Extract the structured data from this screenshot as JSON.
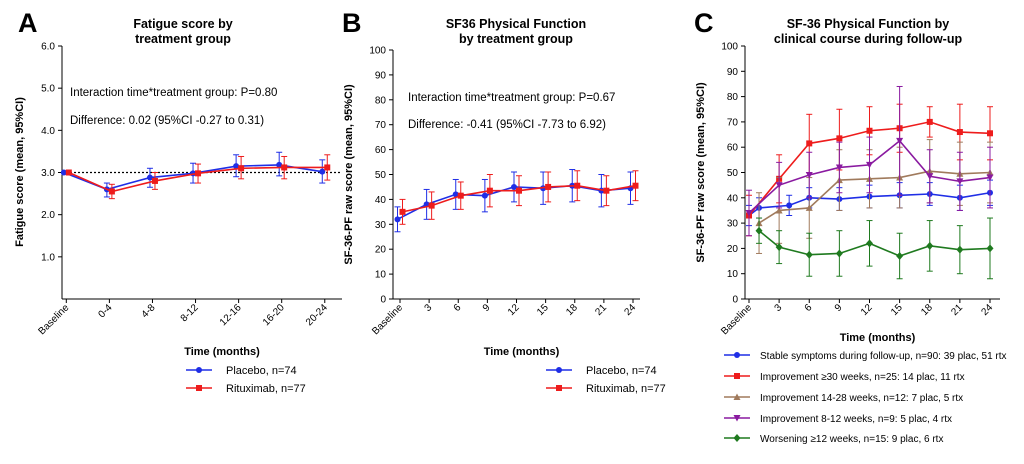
{
  "colors": {
    "blue": "#1f2ee6",
    "red": "#ee1c1c",
    "brown": "#a07a5c",
    "purple": "#8a1aa0",
    "green": "#1f7a1f"
  },
  "chart_data": [
    {
      "panel": "A",
      "type": "line",
      "title_lines": [
        "Fatigue score by",
        "treatment group"
      ],
      "xlabel": "Time (months)",
      "ylabel": "Fatigue score (mean, 95%CI)",
      "categories": [
        "Baseline",
        "0-4",
        "4-8",
        "8-12",
        "12-16",
        "16-20",
        "20-24"
      ],
      "ylim": [
        0,
        6
      ],
      "yticks": [
        "1.0",
        "2.0",
        "3.0",
        "4.0",
        "5.0",
        "6.0"
      ],
      "reference_line": 3.0,
      "annotations": [
        "Interaction time*treatment group: P=0.80",
        "Difference: 0.02 (95%CI -0.27 to 0.31)"
      ],
      "series": [
        {
          "name": "Placebo, n=74",
          "color": "blue",
          "marker": "circle",
          "values": [
            3.0,
            2.6,
            2.88,
            2.98,
            3.15,
            3.18,
            3.02
          ],
          "lower": [
            3.0,
            2.42,
            2.65,
            2.75,
            2.9,
            2.92,
            2.75
          ],
          "upper": [
            3.0,
            2.75,
            3.1,
            3.22,
            3.42,
            3.48,
            3.3
          ]
        },
        {
          "name": "Rituximab, n=77",
          "color": "red",
          "marker": "square",
          "values": [
            3.0,
            2.55,
            2.8,
            2.98,
            3.1,
            3.12,
            3.12
          ],
          "lower": [
            3.0,
            2.38,
            2.6,
            2.75,
            2.85,
            2.85,
            2.82
          ],
          "upper": [
            3.0,
            2.72,
            3.0,
            3.2,
            3.38,
            3.38,
            3.42
          ]
        }
      ]
    },
    {
      "panel": "B",
      "type": "line",
      "title_lines": [
        "SF36 Physical Function",
        "by treatment group"
      ],
      "xlabel": "Time (months)",
      "ylabel": "SF-36-PF raw score (mean, 95%CI)",
      "x": [
        0,
        3,
        6,
        9,
        12,
        15,
        18,
        21,
        24
      ],
      "xticklabels": [
        "Baseline",
        "3",
        "6",
        "9",
        "12",
        "15",
        "18",
        "21",
        "24"
      ],
      "ylim": [
        0,
        100
      ],
      "yticks": [
        0,
        10,
        20,
        30,
        40,
        50,
        60,
        70,
        80,
        90,
        100
      ],
      "annotations": [
        "Interaction time*treatment group: P=0.67",
        "Difference: -0.41 (95%CI -7.73 to 6.92)"
      ],
      "series": [
        {
          "name": "Placebo, n=74",
          "color": "blue",
          "marker": "circle",
          "values": [
            32,
            38,
            42,
            41.5,
            45,
            44.5,
            45.5,
            43.5,
            44.5
          ],
          "lower": [
            27,
            32,
            36,
            35,
            39,
            38,
            39,
            37,
            38
          ],
          "upper": [
            37,
            44,
            48,
            48,
            51,
            51,
            52,
            50,
            51
          ]
        },
        {
          "name": "Rituximab, n=77",
          "color": "red",
          "marker": "square",
          "values": [
            35,
            37.5,
            41.5,
            43.5,
            43.5,
            45,
            45.5,
            43.5,
            45.5
          ],
          "lower": [
            30,
            32,
            36,
            37,
            37.5,
            39,
            39.5,
            37.5,
            39.5
          ],
          "upper": [
            40,
            43,
            47,
            50,
            49.5,
            51,
            51.5,
            49.5,
            51.5
          ]
        }
      ]
    },
    {
      "panel": "C",
      "type": "line",
      "title_lines": [
        "SF-36 Physical Function by",
        "clinical course during follow-up"
      ],
      "xlabel": "Time (months)",
      "ylabel": "SF-36-PF raw score (mean, 95%CI)",
      "xticklabels": [
        "Baseline",
        "3",
        "6",
        "9",
        "12",
        "15",
        "18",
        "21",
        "24"
      ],
      "ylim": [
        0,
        100
      ],
      "yticks": [
        0,
        10,
        20,
        30,
        40,
        50,
        60,
        70,
        80,
        90,
        100
      ],
      "series": [
        {
          "name": "Stable symptoms during follow-up, n=90: 39 plac, 51 rtx",
          "color": "blue",
          "marker": "circle",
          "x": [
            0,
            1,
            4,
            6,
            9,
            12,
            15,
            18,
            21,
            24
          ],
          "values": [
            33,
            36,
            37,
            40,
            39.5,
            40.5,
            41,
            41.5,
            40,
            42
          ],
          "lower": [
            29,
            32,
            33,
            36,
            35,
            36,
            36,
            37,
            35,
            37
          ],
          "upper": [
            37,
            40,
            41,
            44,
            44,
            45,
            46,
            46,
            45,
            47
          ]
        },
        {
          "name": "Improvement ≥30 weeks, n=25: 14 plac, 11 rtx",
          "color": "red",
          "marker": "square",
          "x": [
            0,
            3,
            6,
            9,
            12,
            15,
            18,
            21,
            24
          ],
          "values": [
            33,
            47.5,
            61.5,
            63.5,
            66.5,
            67.5,
            70,
            66,
            65.5
          ],
          "lower": [
            25,
            38,
            50,
            51,
            57,
            58,
            64,
            55,
            55
          ],
          "upper": [
            41,
            57,
            73,
            75,
            76,
            77,
            76,
            77,
            76
          ]
        },
        {
          "name": "Improvement 14-28 weeks, n=12: 7 plac, 5 rtx",
          "color": "brown",
          "marker": "triangle",
          "x": [
            1,
            3,
            6,
            9,
            12,
            15,
            18,
            21,
            24
          ],
          "values": [
            30,
            35,
            36,
            47,
            47.5,
            48,
            50.5,
            49.5,
            50
          ],
          "lower": [
            18,
            22,
            24,
            35,
            36,
            36,
            38,
            37,
            38
          ],
          "upper": [
            42,
            48,
            48,
            59,
            59,
            60,
            63,
            62,
            62
          ]
        },
        {
          "name": "Improvement 8-12 weeks, n=9: 5 plac, 4 rtx",
          "color": "purple",
          "marker": "triangle-down",
          "x": [
            0,
            3,
            6,
            9,
            12,
            15,
            18,
            21,
            24
          ],
          "values": [
            34,
            45,
            49,
            52,
            53,
            62.5,
            48.5,
            46.5,
            48
          ],
          "lower": [
            25,
            36,
            40,
            42,
            42,
            41,
            38,
            35,
            36
          ],
          "upper": [
            43,
            54,
            58,
            62,
            64,
            84,
            59,
            58,
            60
          ]
        },
        {
          "name": "Worsening ≥12 weeks, n=15: 9 plac, 6 rtx",
          "color": "green",
          "marker": "diamond",
          "x": [
            1,
            3,
            6,
            9,
            12,
            15,
            18,
            21,
            24
          ],
          "values": [
            27,
            20.5,
            17.5,
            18,
            22,
            17,
            21,
            19.5,
            20
          ],
          "lower": [
            22,
            14,
            9,
            9,
            13,
            8,
            11,
            10,
            8
          ],
          "upper": [
            32,
            27,
            26,
            27,
            31,
            26,
            31,
            29,
            32
          ]
        }
      ]
    }
  ]
}
